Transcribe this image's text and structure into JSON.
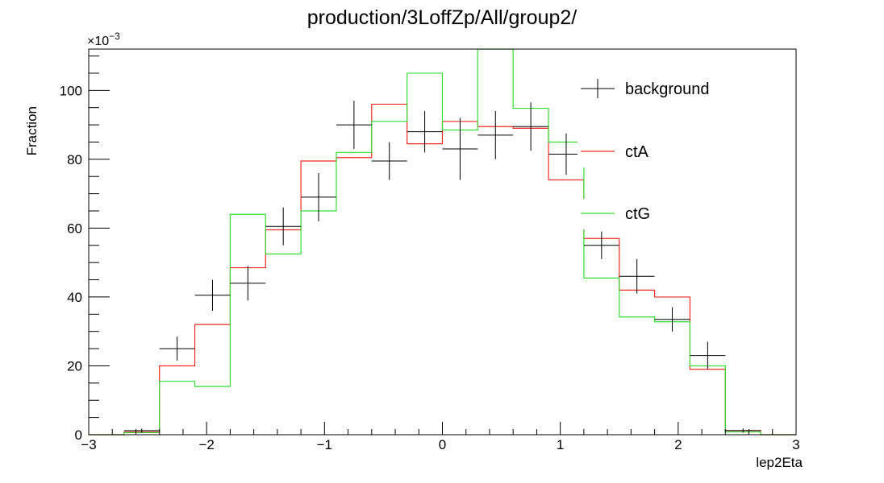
{
  "chart_data": {
    "type": "line",
    "title": "production/3LoffZp/All/group2/",
    "xlabel": "lep2Eta",
    "ylabel": "Fraction",
    "y_multiplier_label": "×10",
    "y_multiplier_exponent": "−3",
    "xlim": [
      -3,
      3
    ],
    "ylim": [
      0,
      112
    ],
    "x_ticks": [
      -3,
      -2,
      -1,
      0,
      1,
      2,
      3
    ],
    "x_tick_labels": [
      "−3",
      "−2",
      "−1",
      "0",
      "1",
      "2",
      "3"
    ],
    "y_ticks": [
      0,
      20,
      40,
      60,
      80,
      100
    ],
    "y_tick_labels": [
      "0",
      "20",
      "40",
      "60",
      "80",
      "100"
    ],
    "grid": false,
    "legend_position": "top-right",
    "bin_edges": [
      -3.0,
      -2.7,
      -2.4,
      -2.1,
      -1.8,
      -1.5,
      -1.2,
      -0.9,
      -0.6,
      -0.3,
      0.0,
      0.3,
      0.6,
      0.9,
      1.2,
      1.5,
      1.8,
      2.1,
      2.4,
      2.7,
      3.0
    ],
    "series": [
      {
        "name": "background",
        "style": "points",
        "color": "#000000",
        "values": [
          0,
          1.2,
          25,
          40.5,
          44,
          60.5,
          69,
          90,
          79.5,
          88,
          83,
          87,
          89.5,
          81.5,
          55,
          46,
          33.5,
          23,
          1.2,
          0
        ],
        "errors": [
          0,
          0.6,
          3.5,
          4.5,
          5,
          5.5,
          7,
          7,
          5.5,
          6,
          9,
          7,
          7,
          6,
          4,
          5,
          3.5,
          4,
          0.6,
          0
        ]
      },
      {
        "name": "ctA",
        "style": "step",
        "color": "#ee2a24",
        "values": [
          0,
          0.8,
          20,
          32,
          48.5,
          59.5,
          79.5,
          80.5,
          96,
          84.5,
          91,
          89.5,
          89,
          74,
          57,
          42,
          40,
          19,
          1.2,
          0
        ]
      },
      {
        "name": "ctG",
        "style": "step",
        "color": "#33dd33",
        "values": [
          0,
          0.6,
          15.5,
          14,
          64,
          52.5,
          65,
          82,
          91,
          105,
          88.5,
          112,
          94.8,
          85,
          45.5,
          34.2,
          32.8,
          20,
          0.8,
          0
        ]
      }
    ]
  }
}
